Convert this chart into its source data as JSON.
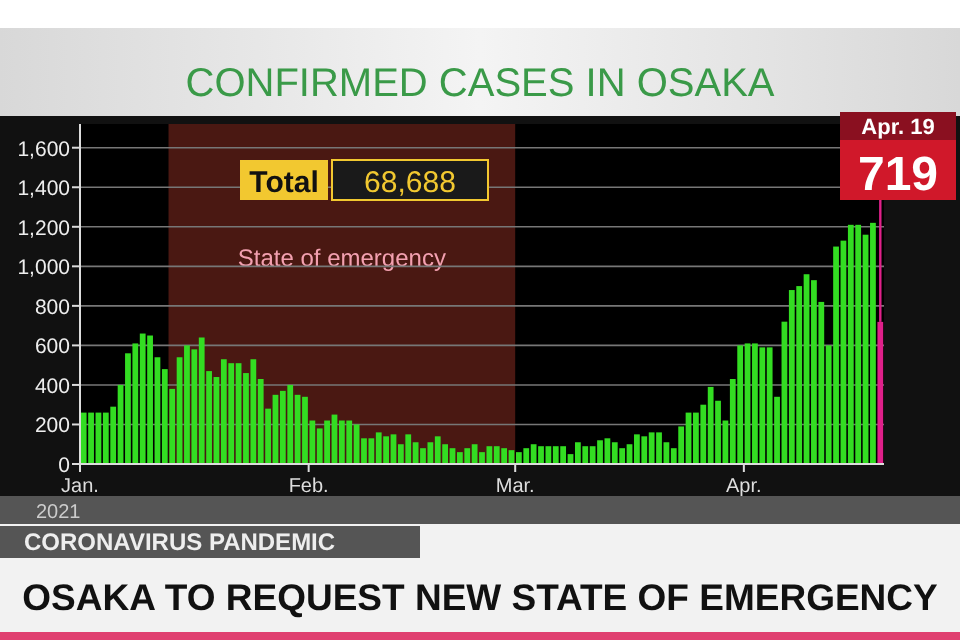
{
  "chart_data": {
    "type": "bar",
    "title": "CONFIRMED CASES IN OSAKA",
    "xlabel": "2021",
    "x": [
      "2021-01-01",
      "2021-01-02",
      "2021-01-03",
      "2021-01-04",
      "2021-01-05",
      "2021-01-06",
      "2021-01-07",
      "2021-01-08",
      "2021-01-09",
      "2021-01-10",
      "2021-01-11",
      "2021-01-12",
      "2021-01-13",
      "2021-01-14",
      "2021-01-15",
      "2021-01-16",
      "2021-01-17",
      "2021-01-18",
      "2021-01-19",
      "2021-01-20",
      "2021-01-21",
      "2021-01-22",
      "2021-01-23",
      "2021-01-24",
      "2021-01-25",
      "2021-01-26",
      "2021-01-27",
      "2021-01-28",
      "2021-01-29",
      "2021-01-30",
      "2021-01-31",
      "2021-02-01",
      "2021-02-02",
      "2021-02-03",
      "2021-02-04",
      "2021-02-05",
      "2021-02-06",
      "2021-02-07",
      "2021-02-08",
      "2021-02-09",
      "2021-02-10",
      "2021-02-11",
      "2021-02-12",
      "2021-02-13",
      "2021-02-14",
      "2021-02-15",
      "2021-02-16",
      "2021-02-17",
      "2021-02-18",
      "2021-02-19",
      "2021-02-20",
      "2021-02-21",
      "2021-02-22",
      "2021-02-23",
      "2021-02-24",
      "2021-02-25",
      "2021-02-26",
      "2021-02-27",
      "2021-02-28",
      "2021-03-01",
      "2021-03-02",
      "2021-03-03",
      "2021-03-04",
      "2021-03-05",
      "2021-03-06",
      "2021-03-07",
      "2021-03-08",
      "2021-03-09",
      "2021-03-10",
      "2021-03-11",
      "2021-03-12",
      "2021-03-13",
      "2021-03-14",
      "2021-03-15",
      "2021-03-16",
      "2021-03-17",
      "2021-03-18",
      "2021-03-19",
      "2021-03-20",
      "2021-03-21",
      "2021-03-22",
      "2021-03-23",
      "2021-03-24",
      "2021-03-25",
      "2021-03-26",
      "2021-03-27",
      "2021-03-28",
      "2021-03-29",
      "2021-03-30",
      "2021-03-31",
      "2021-04-01",
      "2021-04-02",
      "2021-04-03",
      "2021-04-04",
      "2021-04-05",
      "2021-04-06",
      "2021-04-07",
      "2021-04-08",
      "2021-04-09",
      "2021-04-10",
      "2021-04-11",
      "2021-04-12",
      "2021-04-13",
      "2021-04-14",
      "2021-04-15",
      "2021-04-16",
      "2021-04-17",
      "2021-04-18",
      "2021-04-19"
    ],
    "values": [
      260,
      260,
      260,
      260,
      290,
      400,
      560,
      610,
      660,
      650,
      540,
      480,
      380,
      540,
      600,
      580,
      640,
      470,
      440,
      530,
      510,
      510,
      460,
      530,
      430,
      280,
      350,
      370,
      400,
      350,
      340,
      220,
      180,
      220,
      250,
      220,
      220,
      200,
      130,
      130,
      160,
      140,
      150,
      100,
      150,
      110,
      80,
      110,
      140,
      100,
      80,
      60,
      80,
      100,
      60,
      90,
      90,
      80,
      70,
      60,
      80,
      100,
      90,
      90,
      90,
      90,
      50,
      110,
      90,
      90,
      120,
      130,
      110,
      80,
      100,
      150,
      140,
      160,
      160,
      110,
      80,
      190,
      260,
      260,
      300,
      390,
      320,
      220,
      430,
      600,
      610,
      610,
      590,
      590,
      340,
      720,
      880,
      900,
      960,
      930,
      820,
      600,
      1100,
      1130,
      1210,
      1210,
      1160,
      1220,
      719
    ],
    "colors": [
      "#33dd22",
      "#33dd22",
      "#33dd22",
      "#33dd22",
      "#33dd22",
      "#33dd22",
      "#33dd22",
      "#33dd22",
      "#33dd22",
      "#33dd22",
      "#33dd22",
      "#33dd22",
      "#33dd22",
      "#33dd22",
      "#33dd22",
      "#33dd22",
      "#33dd22",
      "#33dd22",
      "#33dd22",
      "#33dd22",
      "#33dd22",
      "#33dd22",
      "#33dd22",
      "#33dd22",
      "#33dd22",
      "#33dd22",
      "#33dd22",
      "#33dd22",
      "#33dd22",
      "#33dd22",
      "#33dd22",
      "#33dd22",
      "#33dd22",
      "#33dd22",
      "#33dd22",
      "#33dd22",
      "#33dd22",
      "#33dd22",
      "#33dd22",
      "#33dd22",
      "#33dd22",
      "#33dd22",
      "#33dd22",
      "#33dd22",
      "#33dd22",
      "#33dd22",
      "#33dd22",
      "#33dd22",
      "#33dd22",
      "#33dd22",
      "#33dd22",
      "#33dd22",
      "#33dd22",
      "#33dd22",
      "#33dd22",
      "#33dd22",
      "#33dd22",
      "#33dd22",
      "#33dd22",
      "#33dd22",
      "#33dd22",
      "#33dd22",
      "#33dd22",
      "#33dd22",
      "#33dd22",
      "#33dd22",
      "#33dd22",
      "#33dd22",
      "#33dd22",
      "#33dd22",
      "#33dd22",
      "#33dd22",
      "#33dd22",
      "#33dd22",
      "#33dd22",
      "#33dd22",
      "#33dd22",
      "#33dd22",
      "#33dd22",
      "#33dd22",
      "#33dd22",
      "#33dd22",
      "#33dd22",
      "#33dd22",
      "#33dd22",
      "#33dd22",
      "#33dd22",
      "#33dd22",
      "#33dd22",
      "#33dd22",
      "#33dd22",
      "#33dd22",
      "#33dd22",
      "#33dd22",
      "#33dd22",
      "#33dd22",
      "#33dd22",
      "#33dd22",
      "#33dd22",
      "#33dd22",
      "#33dd22",
      "#33dd22",
      "#33dd22",
      "#33dd22",
      "#33dd22",
      "#33dd22",
      "#33dd22",
      "#33dd22",
      "#e0208a"
    ],
    "xlim": [
      "2021-01-01",
      "2021-04-20"
    ],
    "xticks": [
      {
        "value": "2021-01-01",
        "label": "Jan."
      },
      {
        "value": "2021-02-01",
        "label": "Feb."
      },
      {
        "value": "2021-03-01",
        "label": "Mar."
      },
      {
        "value": "2021-04-01",
        "label": "Apr."
      }
    ],
    "ylim": [
      0,
      1720
    ],
    "yticks": [
      0,
      200,
      400,
      600,
      800,
      {
        "value": 1000,
        "label": "1,000"
      },
      {
        "value": 1200,
        "label": "1,200"
      },
      {
        "value": 1400,
        "label": "1,400"
      },
      {
        "value": 1600,
        "label": "1,600"
      }
    ],
    "grid": "y",
    "bands": [
      {
        "axis": "x",
        "from": "2021-01-13",
        "to": "2021-03-01",
        "label": "State of emergency",
        "color": "#4a1812"
      }
    ],
    "annotations": [
      "Total 68,688",
      "Apr. 19",
      {
        "text": "719",
        "x": "2021-04-19",
        "y": 719
      },
      "CORONAVIRUS PANDEMIC",
      "OSAKA TO REQUEST NEW STATE OF EMERGENCY"
    ]
  }
}
